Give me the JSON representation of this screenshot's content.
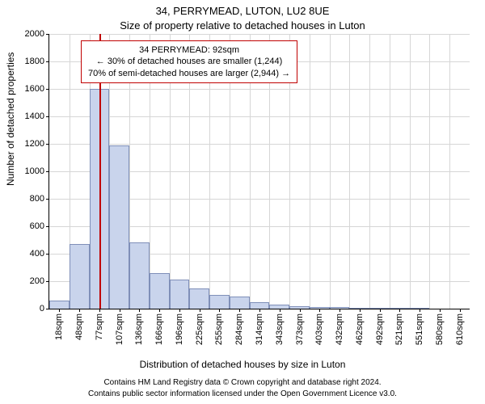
{
  "title_main": "34, PERRYMEAD, LUTON, LU2 8UE",
  "title_sub": "Size of property relative to detached houses in Luton",
  "ylabel": "Number of detached properties",
  "xlabel": "Distribution of detached houses by size in Luton",
  "attribution1": "Contains HM Land Registry data © Crown copyright and database right 2024.",
  "attribution2": "Contains public sector information licensed under the Open Government Licence v3.0.",
  "chart": {
    "type": "histogram",
    "bar_fill": "#c9d4ec",
    "bar_stroke": "#7f8fb8",
    "grid_color": "#d6d6d6",
    "background_color": "#ffffff",
    "marker_color": "#c00000",
    "annot_border": "#c00000",
    "ylim": [
      0,
      2000
    ],
    "ytick_step": 200,
    "x_categories": [
      "18sqm",
      "48sqm",
      "77sqm",
      "107sqm",
      "136sqm",
      "166sqm",
      "196sqm",
      "225sqm",
      "255sqm",
      "284sqm",
      "314sqm",
      "343sqm",
      "373sqm",
      "403sqm",
      "432sqm",
      "462sqm",
      "492sqm",
      "521sqm",
      "551sqm",
      "580sqm",
      "610sqm"
    ],
    "values": [
      60,
      470,
      1600,
      1190,
      480,
      260,
      210,
      150,
      100,
      90,
      50,
      30,
      20,
      10,
      10,
      5,
      5,
      5,
      5,
      0,
      0
    ],
    "marker_category_index": 2,
    "marker_fraction_within": 0.5,
    "annotation": {
      "line1": "34 PERRYMEAD: 92sqm",
      "line2": "← 30% of detached houses are smaller (1,244)",
      "line3": "70% of semi-detached houses are larger (2,944) →"
    }
  }
}
